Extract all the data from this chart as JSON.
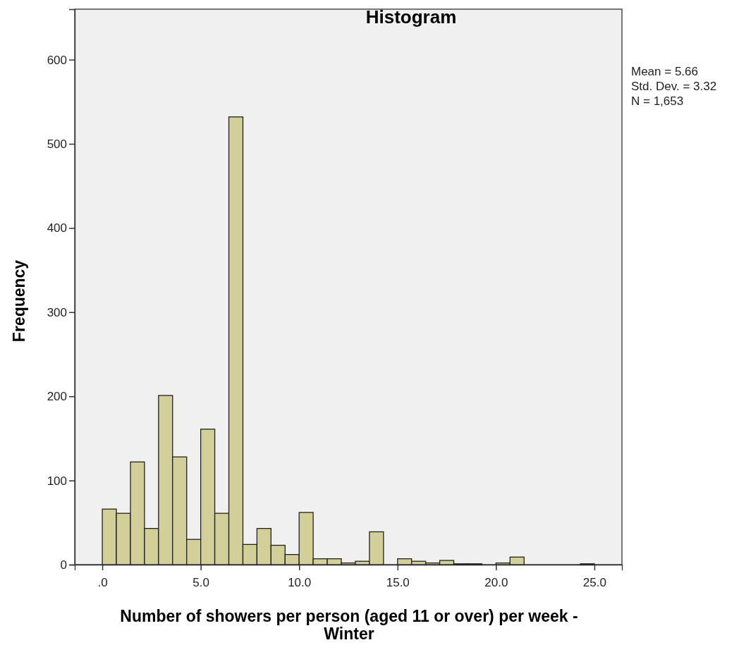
{
  "chart_data": {
    "type": "histogram",
    "title": "Histogram",
    "xlabel": "Number of showers per person (aged 11 or over) per week - Winter",
    "ylabel": "Frequency",
    "annotations": [
      "Mean = 5.66",
      "Std. Dev. = 3.32",
      "N = 1,653"
    ],
    "bins": [
      0,
      0.714,
      1.429,
      2.143,
      2.857,
      3.571,
      4.286,
      5,
      5.714,
      6.429,
      7.143,
      7.857,
      8.571,
      9.286,
      10,
      10.714,
      11.429,
      12.143,
      12.857,
      13.571,
      14.286,
      15,
      15.714,
      16.429,
      17.143,
      17.857,
      18.571,
      19.286,
      20,
      20.714,
      21.429,
      22.143,
      22.857,
      23.571,
      24.286,
      25
    ],
    "values": [
      66,
      61,
      122,
      43,
      201,
      128,
      30,
      161,
      61,
      532,
      24,
      43,
      23,
      12,
      62,
      7,
      7,
      2,
      4,
      39,
      0,
      7,
      4,
      2,
      5,
      1,
      1,
      0,
      2,
      9,
      0,
      0,
      0,
      0,
      1
    ],
    "color": "#d3cf98",
    "xlim": [
      -1.4,
      26.4
    ],
    "ylim": [
      0,
      660
    ],
    "xticks": [
      {
        "value": 0,
        "label": ".0"
      },
      {
        "value": 5,
        "label": "5.0"
      },
      {
        "value": 10,
        "label": "10.0"
      },
      {
        "value": 15,
        "label": "15.0"
      },
      {
        "value": 20,
        "label": "20.0"
      },
      {
        "value": 25,
        "label": "25.0"
      }
    ],
    "yticks": [
      0,
      100,
      200,
      300,
      400,
      500,
      600
    ],
    "grid": false
  }
}
